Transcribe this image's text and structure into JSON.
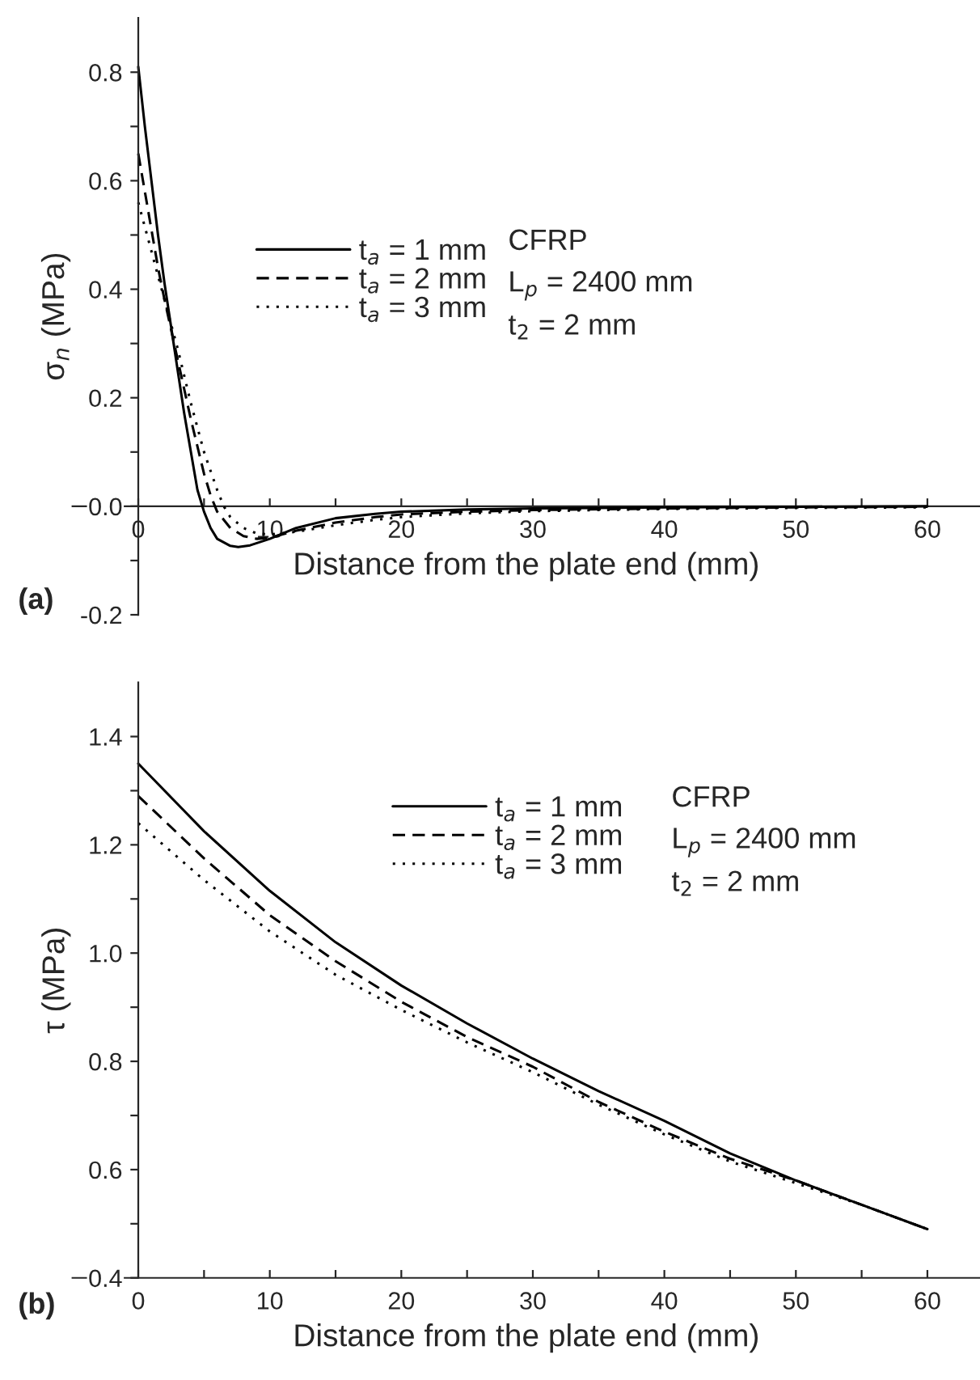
{
  "chart_data": [
    {
      "type": "line",
      "xlabel": "Distance from the plate end (mm)",
      "ylabel": "σ$_{n}$ (MPa)",
      "xlim": [
        -5,
        64
      ],
      "ylim": [
        -0.2,
        0.9
      ],
      "xticks": [
        0,
        {
          "value": 5,
          "label": null
        },
        10,
        {
          "value": 15,
          "label": null
        },
        20,
        {
          "value": 25,
          "label": null
        },
        30,
        {
          "value": 35,
          "label": null
        },
        40,
        {
          "value": 45,
          "label": null
        },
        50,
        {
          "value": 55,
          "label": null
        },
        60
      ],
      "yticks": [
        -0.2,
        {
          "value": -0.1,
          "label": null
        },
        {
          "value": 0,
          "label": "0.0"
        },
        {
          "value": 0.1,
          "label": null
        },
        0.2,
        {
          "value": 0.3,
          "label": null
        },
        0.4,
        {
          "value": 0.5,
          "label": null
        },
        0.6,
        {
          "value": 0.7,
          "label": null
        },
        0.8
      ],
      "grid": false,
      "legend": "center",
      "annotations": [
        "(a)",
        "CFRP",
        "L$_{p}$ = 2400 mm",
        "t$_{2}$ = 2 mm"
      ],
      "series": [
        {
          "name": "t$_{a}$ = 1 mm",
          "color": "#000000",
          "line_style": "solid",
          "x": [
            0,
            0.5,
            1,
            1.5,
            2,
            2.5,
            3,
            3.5,
            4,
            4.5,
            5,
            5.5,
            6,
            7,
            7.6,
            8.5,
            10,
            12,
            15,
            18,
            20,
            25,
            30,
            40,
            50,
            60
          ],
          "values": [
            0.81,
            0.7,
            0.6,
            0.5,
            0.41,
            0.33,
            0.25,
            0.17,
            0.1,
            0.03,
            -0.01,
            -0.04,
            -0.06,
            -0.073,
            -0.075,
            -0.072,
            -0.06,
            -0.04,
            -0.022,
            -0.014,
            -0.01,
            -0.006,
            -0.004,
            -0.002,
            -0.001,
            0
          ]
        },
        {
          "name": "t$_{a}$ = 2 mm",
          "color": "#000000",
          "line_style": "dashed",
          "x": [
            0,
            0.5,
            1,
            1.5,
            2,
            3,
            4,
            5,
            5.5,
            6,
            7,
            8,
            9,
            10,
            12,
            15,
            18,
            20,
            25,
            30,
            40,
            50,
            60
          ],
          "values": [
            0.65,
            0.58,
            0.51,
            0.44,
            0.38,
            0.27,
            0.16,
            0.06,
            0.02,
            -0.01,
            -0.04,
            -0.055,
            -0.06,
            -0.058,
            -0.045,
            -0.03,
            -0.02,
            -0.015,
            -0.01,
            -0.007,
            -0.004,
            -0.002,
            -0.001
          ]
        },
        {
          "name": "t$_{a}$ = 3 mm",
          "color": "#000000",
          "line_style": "dotted",
          "x": [
            0,
            1,
            2,
            3,
            4,
            5,
            6,
            6.5,
            7,
            8,
            9,
            10,
            12,
            15,
            18,
            20,
            25,
            30,
            40,
            50,
            60
          ],
          "values": [
            0.56,
            0.47,
            0.38,
            0.29,
            0.19,
            0.1,
            0.03,
            0.0,
            -0.02,
            -0.04,
            -0.05,
            -0.052,
            -0.047,
            -0.035,
            -0.025,
            -0.02,
            -0.013,
            -0.009,
            -0.005,
            -0.003,
            -0.002
          ]
        }
      ]
    },
    {
      "type": "line",
      "xlabel": "Distance from the plate end (mm)",
      "ylabel": "τ (MPa)",
      "xlim": [
        -5,
        64
      ],
      "ylim": [
        0.4,
        1.5
      ],
      "xticks": [
        0,
        {
          "value": 5,
          "label": null
        },
        10,
        {
          "value": 15,
          "label": null
        },
        20,
        {
          "value": 25,
          "label": null
        },
        30,
        {
          "value": 35,
          "label": null
        },
        40,
        {
          "value": 45,
          "label": null
        },
        50,
        {
          "value": 55,
          "label": null
        },
        60
      ],
      "yticks": [
        0.4,
        {
          "value": 0.5,
          "label": null
        },
        0.6,
        {
          "value": 0.7,
          "label": null
        },
        0.8,
        {
          "value": 0.9,
          "label": null
        },
        {
          "value": 1.0,
          "label": "1.0"
        },
        {
          "value": 1.1,
          "label": null
        },
        1.2,
        {
          "value": 1.3,
          "label": null
        },
        1.4
      ],
      "grid": false,
      "legend": "top right",
      "annotations": [
        "(b)",
        "CFRP",
        "L$_{p}$ = 2400 mm",
        "t$_{2}$ = 2 mm"
      ],
      "series": [
        {
          "name": "t$_{a}$ = 1 mm",
          "color": "#000000",
          "line_style": "solid",
          "x": [
            0,
            5,
            10,
            15,
            20,
            25,
            30,
            35,
            40,
            45,
            50,
            55,
            60
          ],
          "values": [
            1.35,
            1.225,
            1.115,
            1.02,
            0.94,
            0.87,
            0.805,
            0.745,
            0.69,
            0.63,
            0.58,
            0.535,
            0.49
          ]
        },
        {
          "name": "t$_{a}$ = 2 mm",
          "color": "#000000",
          "line_style": "dashed",
          "x": [
            0,
            5,
            10,
            15,
            20,
            25,
            30,
            35,
            40,
            45,
            50,
            55,
            60
          ],
          "values": [
            1.29,
            1.175,
            1.07,
            0.985,
            0.91,
            0.845,
            0.79,
            0.725,
            0.67,
            0.62,
            0.58,
            0.535,
            0.49
          ]
        },
        {
          "name": "t$_{a}$ = 3 mm",
          "color": "#000000",
          "line_style": "dotted",
          "x": [
            0,
            5,
            10,
            15,
            20,
            25,
            30,
            35,
            40,
            45,
            50,
            55,
            60
          ],
          "values": [
            1.24,
            1.135,
            1.04,
            0.96,
            0.895,
            0.835,
            0.78,
            0.72,
            0.665,
            0.615,
            0.575,
            0.535,
            0.49
          ]
        }
      ]
    }
  ]
}
